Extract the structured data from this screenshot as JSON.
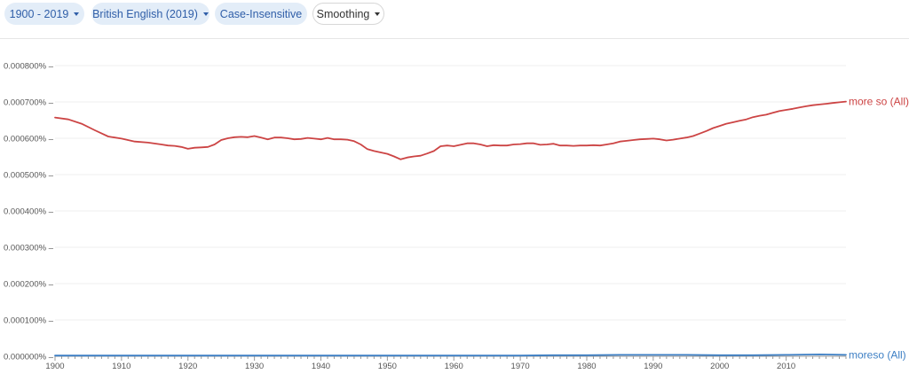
{
  "toolbar": {
    "year_range": "1900 - 2019",
    "corpus": "British English (2019)",
    "case": "Case-Insensitive",
    "smoothing": "Smoothing"
  },
  "colors": {
    "chip_bg": "#e3edf8",
    "chip_text": "#2f5ea8",
    "series_red": "#cc4444",
    "series_blue": "#3d7fc4",
    "gridline": "#efefef"
  },
  "chart_data": {
    "type": "line",
    "title": "",
    "xlabel": "",
    "ylabel": "",
    "xlim": [
      1900,
      2019
    ],
    "ylim": [
      0,
      0.0008
    ],
    "grid": true,
    "yticks": [
      "0.000000%",
      "0.000100%",
      "0.000200%",
      "0.000300%",
      "0.000400%",
      "0.000500%",
      "0.000600%",
      "0.000700%",
      "0.000800%"
    ],
    "xticks": [
      "1900",
      "1910",
      "1920",
      "1930",
      "1940",
      "1950",
      "1960",
      "1970",
      "1980",
      "1990",
      "2000",
      "2010"
    ],
    "series": [
      {
        "name": "more so (All)",
        "color": "#cc4444",
        "x": [
          1900,
          1902,
          1904,
          1906,
          1908,
          1910,
          1912,
          1914,
          1916,
          1917,
          1918,
          1919,
          1920,
          1921,
          1922,
          1923,
          1924,
          1925,
          1926,
          1927,
          1928,
          1929,
          1930,
          1931,
          1932,
          1933,
          1934,
          1935,
          1936,
          1937,
          1938,
          1939,
          1940,
          1941,
          1942,
          1943,
          1944,
          1945,
          1946,
          1947,
          1948,
          1949,
          1950,
          1951,
          1952,
          1953,
          1954,
          1955,
          1956,
          1957,
          1958,
          1959,
          1960,
          1961,
          1962,
          1963,
          1964,
          1965,
          1966,
          1967,
          1968,
          1969,
          1970,
          1971,
          1972,
          1973,
          1974,
          1975,
          1976,
          1977,
          1978,
          1979,
          1980,
          1981,
          1982,
          1983,
          1984,
          1985,
          1986,
          1987,
          1988,
          1989,
          1990,
          1991,
          1992,
          1993,
          1994,
          1995,
          1996,
          1997,
          1998,
          1999,
          2000,
          2001,
          2002,
          2003,
          2004,
          2005,
          2006,
          2007,
          2008,
          2009,
          2010,
          2011,
          2012,
          2013,
          2014,
          2015,
          2016,
          2017,
          2018,
          2019
        ],
        "y": [
          0.000657,
          0.000652,
          0.00064,
          0.000622,
          0.000605,
          0.000599,
          0.000591,
          0.000588,
          0.000583,
          0.00058,
          0.000579,
          0.000576,
          0.000571,
          0.000574,
          0.000575,
          0.000576,
          0.000583,
          0.000595,
          0.0006,
          0.000603,
          0.000604,
          0.000603,
          0.000606,
          0.000602,
          0.000597,
          0.000602,
          0.000602,
          0.0006,
          0.000597,
          0.000598,
          0.000601,
          0.000599,
          0.000597,
          0.000601,
          0.000597,
          0.000597,
          0.000596,
          0.000592,
          0.000583,
          0.00057,
          0.000565,
          0.000561,
          0.000557,
          0.00055,
          0.000542,
          0.000547,
          0.00055,
          0.000552,
          0.000558,
          0.000565,
          0.000578,
          0.00058,
          0.000578,
          0.000582,
          0.000586,
          0.000586,
          0.000583,
          0.000578,
          0.000581,
          0.00058,
          0.00058,
          0.000583,
          0.000584,
          0.000586,
          0.000586,
          0.000582,
          0.000583,
          0.000585,
          0.00058,
          0.00058,
          0.000579,
          0.00058,
          0.00058,
          0.000581,
          0.00058,
          0.000583,
          0.000586,
          0.000591,
          0.000593,
          0.000595,
          0.000597,
          0.000598,
          0.000599,
          0.000597,
          0.000594,
          0.000596,
          0.000599,
          0.000602,
          0.000606,
          0.000613,
          0.00062,
          0.000628,
          0.000634,
          0.00064,
          0.000644,
          0.000648,
          0.000652,
          0.000658,
          0.000662,
          0.000665,
          0.00067,
          0.000675,
          0.000678,
          0.000681,
          0.000685,
          0.000688,
          0.000691,
          0.000693,
          0.000695,
          0.000697,
          0.000699,
          0.000701
        ]
      },
      {
        "name": "moreso (All)",
        "color": "#3d7fc4",
        "x": [
          1900,
          1910,
          1920,
          1930,
          1940,
          1950,
          1960,
          1970,
          1975,
          1980,
          1985,
          1990,
          1995,
          2000,
          2005,
          2010,
          2015,
          2019
        ],
        "y": [
          2e-06,
          2e-06,
          2e-06,
          2e-06,
          2e-06,
          2e-06,
          2e-06,
          2e-06,
          3e-06,
          3e-06,
          4e-06,
          4e-06,
          4e-06,
          3e-06,
          3e-06,
          4e-06,
          5e-06,
          4e-06
        ]
      }
    ]
  }
}
